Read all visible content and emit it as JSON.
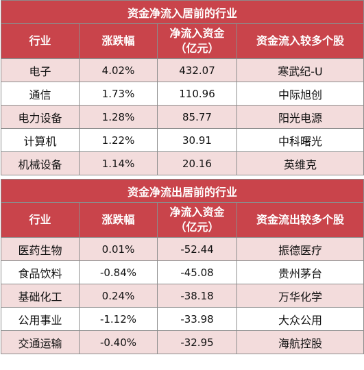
{
  "inflow": {
    "title": "资金净流入居前的行业",
    "headers": [
      "行业",
      "涨跌幅",
      "净流入资金\n（亿元）",
      "资金流入较多个股"
    ],
    "header_line1": "净流入资金",
    "header_line2": "（亿元）",
    "rows": [
      {
        "industry": "电子",
        "change": "4.02%",
        "net": "432.07",
        "stock": "寒武纪-U"
      },
      {
        "industry": "通信",
        "change": "1.73%",
        "net": "110.96",
        "stock": "中际旭创"
      },
      {
        "industry": "电力设备",
        "change": "1.28%",
        "net": "85.77",
        "stock": "阳光电源"
      },
      {
        "industry": "计算机",
        "change": "1.22%",
        "net": "30.91",
        "stock": "中科曙光"
      },
      {
        "industry": "机械设备",
        "change": "1.14%",
        "net": "20.16",
        "stock": "英维克"
      }
    ]
  },
  "outflow": {
    "title": "资金净流出居前的行业",
    "h_industry": "行业",
    "h_change": "涨跌幅",
    "header_line1": "净流入资金",
    "header_line2": "（亿元）",
    "h_stock": "资金流出较多个股",
    "rows": [
      {
        "industry": "医药生物",
        "change": "0.01%",
        "net": "-52.44",
        "stock": "振德医疗"
      },
      {
        "industry": "食品饮料",
        "change": "-0.84%",
        "net": "-45.08",
        "stock": "贵州茅台"
      },
      {
        "industry": "基础化工",
        "change": "0.24%",
        "net": "-38.18",
        "stock": "万华化学"
      },
      {
        "industry": "公用事业",
        "change": "-1.12%",
        "net": "-33.98",
        "stock": "大众公用"
      },
      {
        "industry": "交通运输",
        "change": "-0.40%",
        "net": "-32.95",
        "stock": "海航控股"
      }
    ]
  },
  "colors": {
    "header_bg": "#c9444b",
    "alt_row_bg": "#f3dcdc"
  }
}
